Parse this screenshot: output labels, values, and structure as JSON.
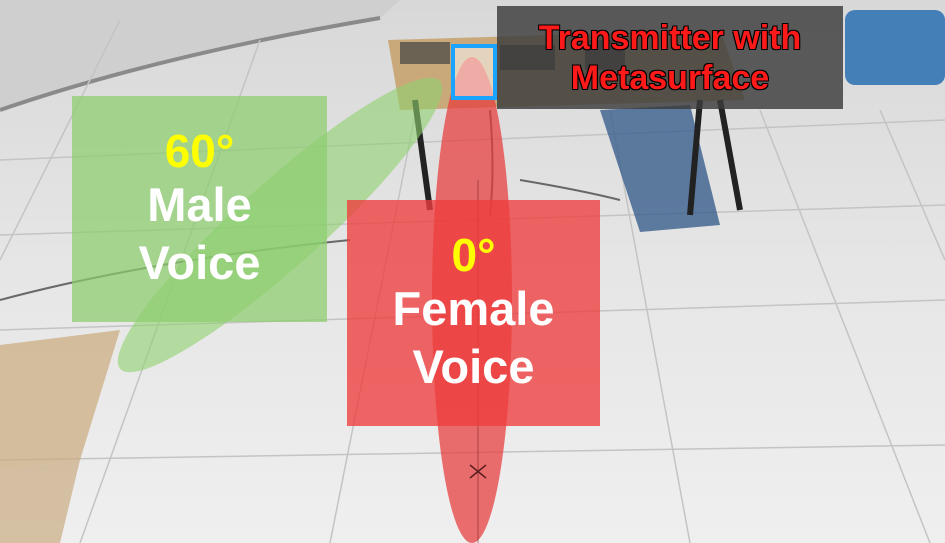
{
  "transmitter": {
    "line1": "Transmitter with",
    "line2": "Metasurface"
  },
  "male": {
    "angle": "60°",
    "line1": "Male",
    "line2": "Voice"
  },
  "female": {
    "angle": "0°",
    "line1": "Female",
    "line2": "Voice"
  },
  "colors": {
    "male_beam": "#8fd26e",
    "female_beam": "#e83a3a",
    "angle_text": "#ffff00",
    "label_text": "#ffffff",
    "transmitter_text": "#ff1a1a",
    "marker": "#1aa3ff"
  }
}
